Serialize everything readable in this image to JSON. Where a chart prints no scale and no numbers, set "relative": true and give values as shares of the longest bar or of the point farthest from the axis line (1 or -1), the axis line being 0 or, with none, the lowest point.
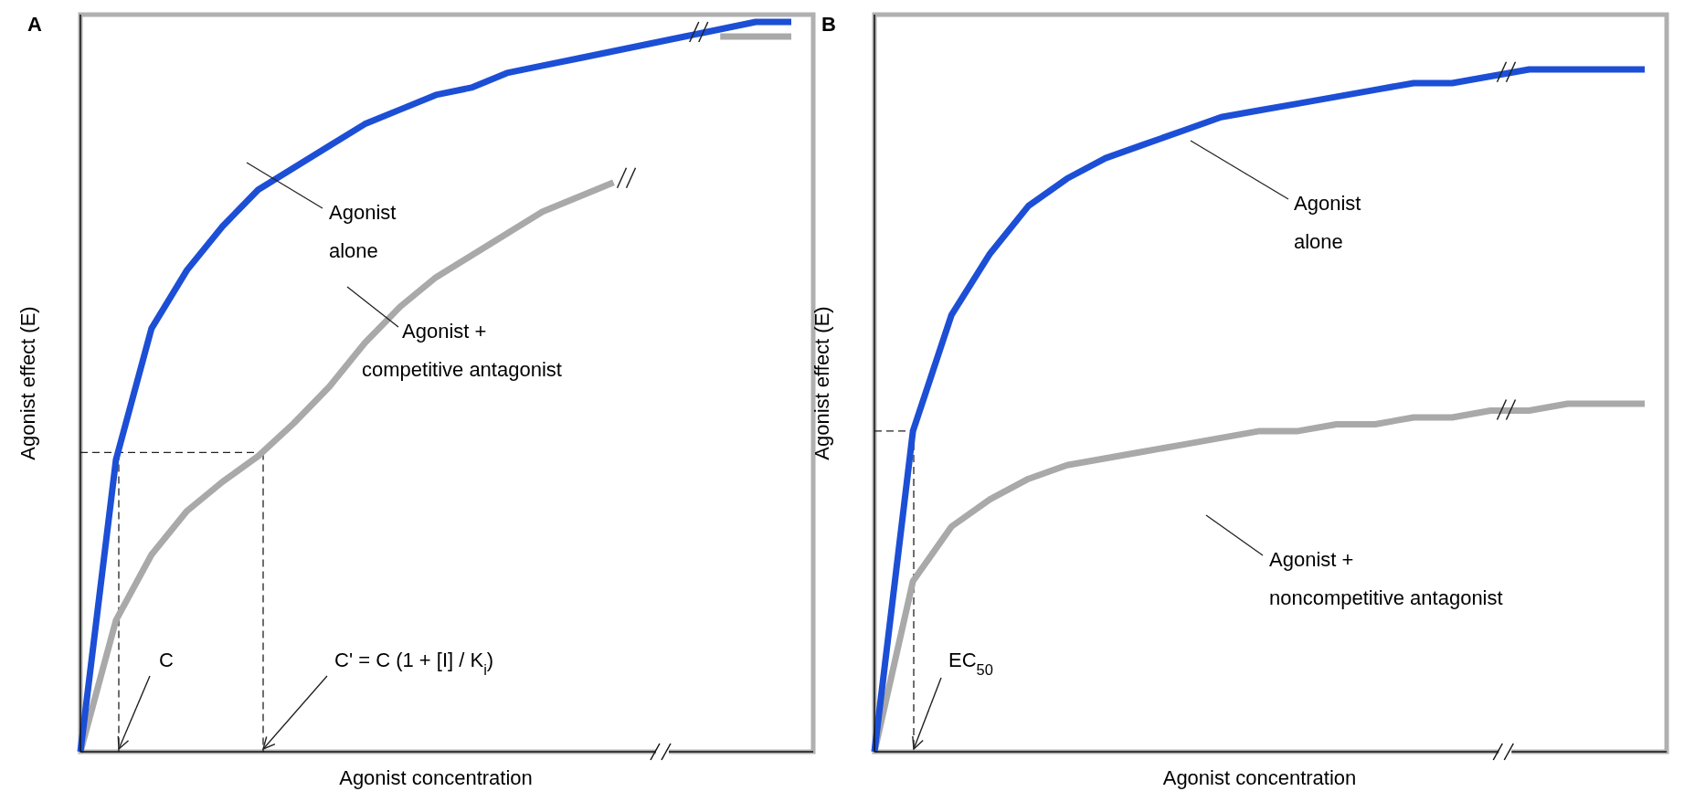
{
  "chart_data": [
    {
      "type": "line",
      "title": "A",
      "xlabel": "Agonist concentration",
      "ylabel": "Agonist effect (E)",
      "relative": true,
      "categories": [
        null,
        null,
        null,
        null,
        null,
        null,
        null,
        null,
        null,
        null,
        null,
        null,
        null,
        null,
        null,
        null,
        null,
        null,
        null,
        null,
        null
      ],
      "series": [
        {
          "color": "#a9a9a9",
          "values": [
            0,
            0.18,
            0.27,
            0.33,
            0.37,
            0.405,
            0.45,
            0.5,
            0.56,
            0.61,
            0.65,
            0.68,
            0.71,
            0.74,
            0.76,
            0.78,
            null,
            null,
            null,
            null,
            null
          ]
        },
        {
          "color": "#a9a9a9",
          "values": [
            null,
            null,
            null,
            null,
            null,
            null,
            null,
            null,
            null,
            null,
            null,
            null,
            null,
            null,
            null,
            null,
            null,
            null,
            0.98,
            0.98,
            0.98
          ]
        },
        {
          "color": "#1c4fd6",
          "values": [
            0,
            0.4,
            0.58,
            0.66,
            0.72,
            0.77,
            0.8,
            0.83,
            0.86,
            0.88,
            0.9,
            0.91,
            0.93,
            0.94,
            0.95,
            0.96,
            0.97,
            0.98,
            0.99,
            1,
            1
          ]
        }
      ],
      "annotations": [
        "Agonist alone",
        "Agonist + competitive antagonist",
        "C",
        "C' = C (1 + [I] / K$_{i}$)"
      ]
    },
    {
      "type": "line",
      "title": "B",
      "xlabel": "Agonist concentration",
      "ylabel": "Agonist effect (E)",
      "relative": true,
      "categories": [
        null,
        null,
        null,
        null,
        null,
        null,
        null,
        null,
        null,
        null,
        null,
        null,
        null,
        null,
        null,
        null,
        null,
        null,
        null,
        null,
        null
      ],
      "series": [
        {
          "color": "#a9a9a9",
          "values": [
            0,
            0.25,
            0.33,
            0.37,
            0.4,
            0.42,
            0.43,
            0.44,
            0.45,
            0.46,
            0.47,
            0.47,
            0.48,
            0.48,
            0.49,
            0.49,
            0.5,
            0.5,
            0.51,
            0.51,
            0.51
          ]
        },
        {
          "color": "#1c4fd6",
          "values": [
            0,
            0.47,
            0.64,
            0.73,
            0.8,
            0.84,
            0.87,
            0.89,
            0.91,
            0.93,
            0.94,
            0.95,
            0.96,
            0.97,
            0.98,
            0.98,
            0.99,
            1,
            1,
            1,
            1
          ]
        }
      ],
      "annotations": [
        "Agonist alone",
        "Agonist + noncompetitive antagonist",
        "EC$_{50}$"
      ]
    }
  ]
}
